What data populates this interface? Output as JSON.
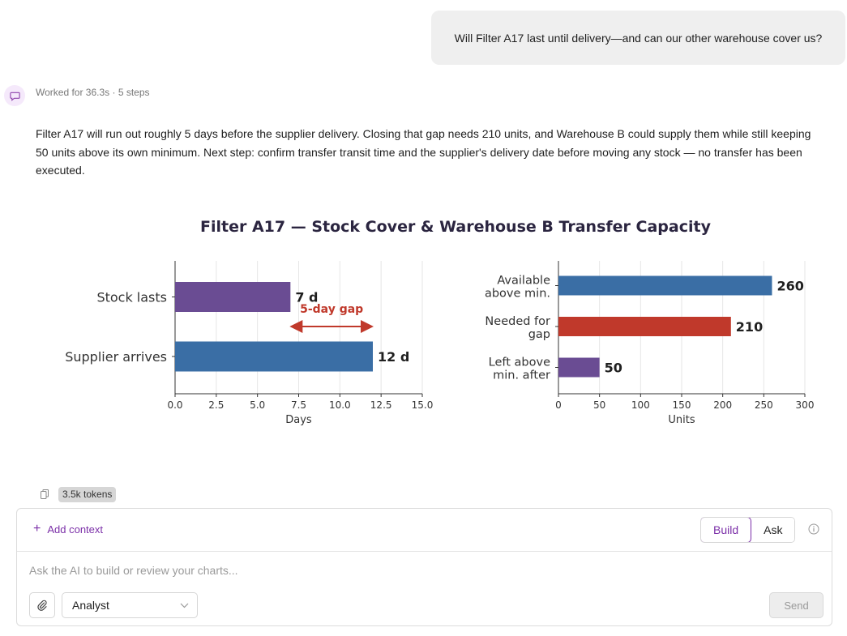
{
  "conversation": {
    "user_message": "Will Filter A17 last until delivery—and can our other warehouse cover us?",
    "worked_for": "Worked for 36.3s · 5 steps",
    "answer": "Filter A17 will run out roughly 5 days before the supplier delivery. Closing that gap needs 210 units, and Warehouse B could supply them while still keeping 50 units above its own minimum. Next step: confirm transfer transit time and the supplier's delivery date before moving any stock — no transfer has been executed.",
    "tokens": "3.5k tokens"
  },
  "chart_data": [
    {
      "type": "bar",
      "orientation": "horizontal",
      "title": "Filter A17 — Stock Cover & Warehouse B Transfer Capacity",
      "categories": [
        "Stock lasts",
        "Supplier arrives"
      ],
      "values": [
        7,
        12
      ],
      "data_labels": [
        "7 d",
        "12 d"
      ],
      "colors": [
        "#6a4c93",
        "#3a6ea5"
      ],
      "xlabel": "Days",
      "xlim": [
        0,
        15
      ],
      "xticks": [
        "0.0",
        "2.5",
        "5.0",
        "7.5",
        "10.0",
        "12.5",
        "15.0"
      ],
      "annotation": {
        "text": "5-day gap",
        "from": 7,
        "to": 12,
        "color": "#c0392b"
      },
      "grid": "vertical"
    },
    {
      "type": "bar",
      "orientation": "horizontal",
      "categories": [
        "Available above min.",
        "Needed for gap",
        "Left above min. after"
      ],
      "category_lines": [
        [
          "Available",
          "above min."
        ],
        [
          "Needed for",
          "gap"
        ],
        [
          "Left above",
          "min. after"
        ]
      ],
      "values": [
        260,
        210,
        50
      ],
      "data_labels": [
        "260",
        "210",
        "50"
      ],
      "colors": [
        "#3a6ea5",
        "#c0392b",
        "#6a4c93"
      ],
      "xlabel": "Units",
      "xlim": [
        0,
        300
      ],
      "xticks": [
        "0",
        "50",
        "100",
        "150",
        "200",
        "250",
        "300"
      ],
      "grid": "vertical"
    }
  ],
  "composer": {
    "add_context": "Add context",
    "modes": [
      "Build",
      "Ask"
    ],
    "active_mode": "Build",
    "placeholder": "Ask the AI to build or review your charts...",
    "agent": "Analyst",
    "send": "Send"
  },
  "icons": {
    "avatar": "chat-bubble-icon",
    "copy": "copy-icon",
    "info": "info-icon",
    "attach": "paperclip-icon",
    "dropdown": "chevron-down-icon"
  }
}
